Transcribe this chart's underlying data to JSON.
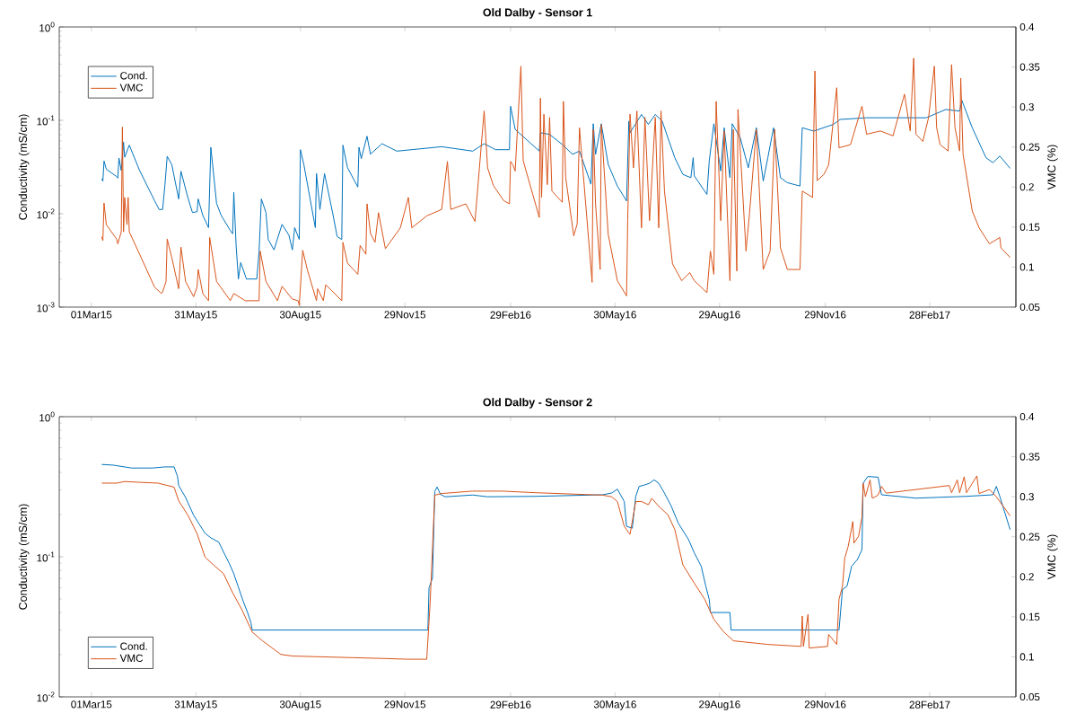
{
  "chart_data": [
    {
      "type": "line",
      "title": "Old Dalby - Sensor 1",
      "ylabel": "Conductivity (mS/cm)",
      "y2label": "VMC (%)",
      "log": "y",
      "legend": "top left",
      "xlim": [
        "2015-02-01",
        "2017-05-14"
      ],
      "xticks": [
        {
          "value": "2015-03-01",
          "label": "01Mar15"
        },
        {
          "value": "2015-05-31",
          "label": "31May15"
        },
        {
          "value": "2015-08-30",
          "label": "30Aug15"
        },
        {
          "value": "2015-11-29",
          "label": "29Nov15"
        },
        {
          "value": "2016-02-29",
          "label": "29Feb16"
        },
        {
          "value": "2016-05-30",
          "label": "30May16"
        },
        {
          "value": "2016-08-29",
          "label": "29Aug16"
        },
        {
          "value": "2016-11-29",
          "label": "29Nov16"
        },
        {
          "value": "2017-02-28",
          "label": "28Feb17"
        }
      ],
      "ylim": [
        0.001,
        1
      ],
      "yticks": [
        {
          "value": 0.001,
          "label": "10$^{-3}$"
        },
        {
          "value": 0.01,
          "label": "10$^{-2}$"
        },
        {
          "value": 0.1,
          "label": "10$^{-1}$"
        },
        {
          "value": 1,
          "label": "10$^{0}$"
        }
      ],
      "y2lim": [
        0.05,
        0.4
      ],
      "y2ticks": [
        0.05,
        0.1,
        0.15,
        0.2,
        0.25,
        0.3,
        0.35,
        0.4
      ],
      "series": [
        {
          "name": "Cond.",
          "color": "#0072bd",
          "x": [
            "2015-03-10",
            "2015-03-11",
            "2015-03-12",
            "2015-03-14",
            "2015-03-23",
            "2015-03-24",
            "2015-03-25",
            "2015-03-27",
            "2015-03-29",
            "2015-03-30",
            "2015-04-03",
            "2015-04-12",
            "2015-04-25",
            "2015-04-29",
            "2015-05-02",
            "2015-05-04",
            "2015-05-06",
            "2015-05-10",
            "2015-05-16",
            "2015-05-18",
            "2015-05-24",
            "2015-05-28",
            "2015-06-01",
            "2015-06-02",
            "2015-06-06",
            "2015-06-11",
            "2015-06-13",
            "2015-06-18",
            "2015-06-22",
            "2015-06-30",
            "2015-07-02",
            "2015-07-03",
            "2015-07-05",
            "2015-07-07",
            "2015-07-09",
            "2015-07-14",
            "2015-07-23",
            "2015-07-25",
            "2015-07-27",
            "2015-07-31",
            "2015-08-02",
            "2015-08-07",
            "2015-08-14",
            "2015-08-20",
            "2015-08-23",
            "2015-08-25",
            "2015-08-29",
            "2015-08-30",
            "2015-09-02",
            "2015-09-12",
            "2015-09-13",
            "2015-09-16",
            "2015-09-20",
            "2015-09-27",
            "2015-10-01",
            "2015-10-05",
            "2015-10-06",
            "2015-10-10",
            "2015-10-19",
            "2015-10-20",
            "2015-10-22",
            "2015-10-27",
            "2015-10-30",
            "2015-11-09",
            "2015-11-22",
            "2015-12-05",
            "2015-12-31",
            "2016-01-27",
            "2016-02-06",
            "2016-02-16",
            "2016-02-28",
            "2016-02-29",
            "2016-03-04",
            "2016-03-25",
            "2016-03-26",
            "2016-04-03",
            "2016-04-14",
            "2016-04-23",
            "2016-04-29",
            "2016-05-09",
            "2016-05-11",
            "2016-05-13",
            "2016-05-18",
            "2016-05-24",
            "2016-06-01",
            "2016-06-09",
            "2016-06-11",
            "2016-06-12",
            "2016-06-22",
            "2016-06-28",
            "2016-07-04",
            "2016-07-10",
            "2016-07-21",
            "2016-07-28",
            "2016-08-04",
            "2016-08-06",
            "2016-08-07",
            "2016-08-18",
            "2016-08-20",
            "2016-08-24",
            "2016-08-30",
            "2016-09-02",
            "2016-09-07",
            "2016-09-09",
            "2016-09-16",
            "2016-09-23",
            "2016-09-30",
            "2016-10-06",
            "2016-10-10",
            "2016-10-15",
            "2016-10-21",
            "2016-10-27",
            "2016-11-07",
            "2016-11-09",
            "2016-11-19",
            "2016-12-06",
            "2016-12-12",
            "2017-01-04",
            "2017-02-02",
            "2017-02-25",
            "2017-03-14",
            "2017-03-26",
            "2017-03-28",
            "2017-04-06",
            "2017-04-18",
            "2017-04-24",
            "2017-04-30",
            "2017-05-09"
          ],
          "values": [
            0.0237,
            0.0223,
            0.0366,
            0.03,
            0.025,
            0.0241,
            0.0395,
            0.029,
            0.0583,
            0.0403,
            0.0542,
            0.029,
            0.0138,
            0.0111,
            0.0111,
            0.02,
            0.0412,
            0.0336,
            0.0144,
            0.0285,
            0.0149,
            0.0103,
            0.0105,
            0.0144,
            0.0096,
            0.0071,
            0.0515,
            0.0129,
            0.0096,
            0.0066,
            0.0061,
            0.017,
            0.0046,
            0.002,
            0.003,
            0.002,
            0.002,
            0.0039,
            0.0144,
            0.0103,
            0.0053,
            0.0041,
            0.0077,
            0.0059,
            0.0041,
            0.0071,
            0.0053,
            0.0485,
            0.0336,
            0.0071,
            0.0269,
            0.0111,
            0.0269,
            0.0103,
            0.0057,
            0.0053,
            0.0542,
            0.0312,
            0.0193,
            0.0515,
            0.0389,
            0.0676,
            0.0434,
            0.0562,
            0.0468,
            0.0485,
            0.0522,
            0.0468,
            0.0562,
            0.0485,
            0.0485,
            0.1415,
            0.08,
            0.0469,
            0.0736,
            0.0707,
            0.0552,
            0.0432,
            0.0469,
            0.0207,
            0.0919,
            0.0432,
            0.0919,
            0.0338,
            0.0198,
            0.0137,
            0.0982,
            0.0736,
            0.1156,
            0.0904,
            0.1156,
            0.0982,
            0.0398,
            0.0264,
            0.0243,
            0.0398,
            0.0254,
            0.0161,
            0.0367,
            0.0919,
            0.0287,
            0.0833,
            0.0243,
            0.0919,
            0.0651,
            0.0311,
            0.0833,
            0.0224,
            0.0398,
            0.0833,
            0.0243,
            0.0215,
            0.0198,
            0.0833,
            0.0767,
            0.0904,
            0.1022,
            0.1065,
            0.1065,
            0.1065,
            0.1307,
            0.1256,
            0.1632,
            0.0833,
            0.0398,
            0.0352,
            0.0415,
            0.0306
          ]
        },
        {
          "name": "VMC",
          "color": "#d95319",
          "axis": "y2",
          "x": [
            "2015-03-10",
            "2015-03-11",
            "2015-03-12",
            "2015-03-14",
            "2015-03-23",
            "2015-03-24",
            "2015-03-27",
            "2015-03-28",
            "2015-03-29",
            "2015-03-30",
            "2015-04-01",
            "2015-04-02",
            "2015-04-03",
            "2015-04-12",
            "2015-04-25",
            "2015-05-01",
            "2015-05-02",
            "2015-05-05",
            "2015-05-06",
            "2015-05-10",
            "2015-05-16",
            "2015-05-18",
            "2015-05-22",
            "2015-05-29",
            "2015-06-01",
            "2015-06-02",
            "2015-06-06",
            "2015-06-11",
            "2015-06-12",
            "2015-06-18",
            "2015-06-30",
            "2015-07-03",
            "2015-07-13",
            "2015-07-25",
            "2015-07-26",
            "2015-07-31",
            "2015-08-10",
            "2015-08-14",
            "2015-08-23",
            "2015-08-28",
            "2015-08-29",
            "2015-09-01",
            "2015-09-05",
            "2015-09-13",
            "2015-09-14",
            "2015-09-19",
            "2015-09-21",
            "2015-09-26",
            "2015-10-05",
            "2015-10-06",
            "2015-10-10",
            "2015-10-19",
            "2015-10-21",
            "2015-10-26",
            "2015-10-27",
            "2015-10-30",
            "2015-11-03",
            "2015-11-06",
            "2015-11-12",
            "2015-11-25",
            "2015-12-02",
            "2015-12-05",
            "2015-12-18",
            "2015-12-31",
            "2016-01-05",
            "2016-01-08",
            "2016-01-21",
            "2016-01-29",
            "2016-02-06",
            "2016-02-09",
            "2016-02-14",
            "2016-02-23",
            "2016-02-28",
            "2016-02-29",
            "2016-03-02",
            "2016-03-04",
            "2016-03-09",
            "2016-03-11",
            "2016-03-25",
            "2016-03-26",
            "2016-03-27",
            "2016-03-29",
            "2016-04-01",
            "2016-04-03",
            "2016-04-05",
            "2016-04-14",
            "2016-04-15",
            "2016-04-17",
            "2016-04-24",
            "2016-04-27",
            "2016-04-29",
            "2016-05-10",
            "2016-05-11",
            "2016-05-13",
            "2016-05-17",
            "2016-05-18",
            "2016-05-24",
            "2016-06-01",
            "2016-06-09",
            "2016-06-10",
            "2016-06-12",
            "2016-06-15",
            "2016-06-18",
            "2016-06-22",
            "2016-06-25",
            "2016-06-29",
            "2016-07-04",
            "2016-07-07",
            "2016-07-09",
            "2016-07-12",
            "2016-07-19",
            "2016-07-27",
            "2016-08-03",
            "2016-08-07",
            "2016-08-18",
            "2016-08-21",
            "2016-08-24",
            "2016-08-26",
            "2016-08-30",
            "2016-09-02",
            "2016-09-07",
            "2016-09-10",
            "2016-09-13",
            "2016-09-14",
            "2016-09-21",
            "2016-09-24",
            "2016-09-30",
            "2016-10-06",
            "2016-10-12",
            "2016-10-16",
            "2016-10-21",
            "2016-10-27",
            "2016-11-07",
            "2016-11-09",
            "2016-11-18",
            "2016-11-20",
            "2016-11-22",
            "2016-11-28",
            "2016-12-02",
            "2016-12-09",
            "2016-12-11",
            "2016-12-21",
            "2016-12-31",
            "2017-01-04",
            "2017-01-16",
            "2017-01-27",
            "2017-02-06",
            "2017-02-11",
            "2017-02-14",
            "2017-02-16",
            "2017-02-22",
            "2017-02-27",
            "2017-03-04",
            "2017-03-06",
            "2017-03-09",
            "2017-03-16",
            "2017-03-19",
            "2017-03-22",
            "2017-03-26",
            "2017-03-27",
            "2017-03-29",
            "2017-04-06",
            "2017-04-12",
            "2017-04-21",
            "2017-04-30",
            "2017-05-01",
            "2017-05-09"
          ],
          "values": [
            0.138,
            0.133,
            0.18,
            0.153,
            0.135,
            0.129,
            0.144,
            0.275,
            0.144,
            0.187,
            0.153,
            0.187,
            0.144,
            0.116,
            0.075,
            0.067,
            0.069,
            0.082,
            0.135,
            0.112,
            0.073,
            0.125,
            0.082,
            0.063,
            0.075,
            0.097,
            0.067,
            0.058,
            0.137,
            0.082,
            0.058,
            0.067,
            0.058,
            0.058,
            0.12,
            0.082,
            0.058,
            0.076,
            0.06,
            0.058,
            0.052,
            0.121,
            0.097,
            0.058,
            0.073,
            0.058,
            0.078,
            0.071,
            0.058,
            0.131,
            0.105,
            0.091,
            0.127,
            0.116,
            0.179,
            0.142,
            0.131,
            0.168,
            0.123,
            0.149,
            0.187,
            0.149,
            0.164,
            0.172,
            0.232,
            0.172,
            0.179,
            0.157,
            0.295,
            0.224,
            0.202,
            0.183,
            0.179,
            0.232,
            0.228,
            0.22,
            0.351,
            0.233,
            0.162,
            0.311,
            0.187,
            0.291,
            0.203,
            0.287,
            0.195,
            0.181,
            0.307,
            0.212,
            0.139,
            0.154,
            0.274,
            0.081,
            0.272,
            0.179,
            0.097,
            0.278,
            0.141,
            0.083,
            0.064,
            0.158,
            0.291,
            0.224,
            0.295,
            0.149,
            0.287,
            0.158,
            0.287,
            0.149,
            0.295,
            0.195,
            0.104,
            0.083,
            0.093,
            0.083,
            0.068,
            0.12,
            0.091,
            0.307,
            0.158,
            0.27,
            0.083,
            0.272,
            0.095,
            0.297,
            0.12,
            0.166,
            0.272,
            0.097,
            0.12,
            0.272,
            0.124,
            0.097,
            0.097,
            0.195,
            0.187,
            0.345,
            0.208,
            0.216,
            0.228,
            0.324,
            0.249,
            0.253,
            0.301,
            0.266,
            0.27,
            0.264,
            0.316,
            0.27,
            0.361,
            0.266,
            0.257,
            0.287,
            0.351,
            0.274,
            0.253,
            0.245,
            0.353,
            0.274,
            0.245,
            0.336,
            0.241,
            0.17,
            0.149,
            0.129,
            0.137,
            0.124,
            0.112
          ]
        }
      ]
    },
    {
      "type": "line",
      "title": "Old Dalby - Sensor 2",
      "ylabel": "Conductivity (mS/cm)",
      "y2label": "VMC (%)",
      "log": "y",
      "legend": "bottom left",
      "xlim": [
        "2015-02-01",
        "2017-05-14"
      ],
      "xticks": [
        {
          "value": "2015-03-01",
          "label": "01Mar15"
        },
        {
          "value": "2015-05-31",
          "label": "31May15"
        },
        {
          "value": "2015-08-30",
          "label": "30Aug15"
        },
        {
          "value": "2015-11-29",
          "label": "29Nov15"
        },
        {
          "value": "2016-02-29",
          "label": "29Feb16"
        },
        {
          "value": "2016-05-30",
          "label": "30May16"
        },
        {
          "value": "2016-08-29",
          "label": "29Aug16"
        },
        {
          "value": "2016-11-29",
          "label": "29Nov16"
        },
        {
          "value": "2017-02-28",
          "label": "28Feb17"
        }
      ],
      "ylim": [
        0.01,
        1
      ],
      "yticks": [
        {
          "value": 0.01,
          "label": "10$^{-2}$"
        },
        {
          "value": 0.1,
          "label": "10$^{-1}$"
        },
        {
          "value": 1,
          "label": "10$^{0}$"
        }
      ],
      "y2lim": [
        0.05,
        0.4
      ],
      "y2ticks": [
        0.05,
        0.1,
        0.15,
        0.2,
        0.25,
        0.3,
        0.35,
        0.4
      ],
      "series": [
        {
          "name": "Cond.",
          "color": "#0072bd",
          "x": [
            "2015-03-10",
            "2015-03-20",
            "2015-04-05",
            "2015-04-23",
            "2015-05-04",
            "2015-05-10",
            "2015-05-12",
            "2015-05-15",
            "2015-05-16",
            "2015-05-22",
            "2015-05-29",
            "2015-06-03",
            "2015-06-08",
            "2015-06-13",
            "2015-06-20",
            "2015-06-25",
            "2015-06-29",
            "2015-07-03",
            "2015-07-07",
            "2015-07-11",
            "2015-07-15",
            "2015-07-18",
            "2015-07-19",
            "2015-08-23",
            "2015-10-14",
            "2015-12-19",
            "2015-12-20",
            "2015-12-23",
            "2015-12-25",
            "2015-12-27",
            "2015-12-30",
            "2016-01-03",
            "2016-01-27",
            "2016-02-09",
            "2016-03-22",
            "2016-05-19",
            "2016-05-27",
            "2016-06-01",
            "2016-06-07",
            "2016-06-09",
            "2016-06-14",
            "2016-06-17",
            "2016-06-20",
            "2016-06-25",
            "2016-06-29",
            "2016-07-03",
            "2016-07-07",
            "2016-07-12",
            "2016-07-18",
            "2016-07-24",
            "2016-08-02",
            "2016-08-07",
            "2016-08-13",
            "2016-08-17",
            "2016-08-20",
            "2016-08-21",
            "2016-09-07",
            "2016-09-08",
            "2016-10-10",
            "2016-12-11",
            "2016-12-14",
            "2016-12-18",
            "2016-12-22",
            "2016-12-27",
            "2016-12-31",
            "2017-01-01",
            "2017-01-05",
            "2017-01-14",
            "2017-01-15",
            "2017-01-17",
            "2017-02-16",
            "2017-04-01",
            "2017-04-24",
            "2017-04-27",
            "2017-04-30",
            "2017-05-09"
          ],
          "values": [
            0.456,
            0.451,
            0.43,
            0.43,
            0.438,
            0.438,
            0.438,
            0.374,
            0.323,
            0.265,
            0.198,
            0.1705,
            0.147,
            0.1366,
            0.127,
            0.1043,
            0.09,
            0.0757,
            0.0607,
            0.0486,
            0.04,
            0.0337,
            0.03,
            0.03,
            0.03,
            0.03,
            0.0601,
            0.0704,
            0.292,
            0.315,
            0.279,
            0.268,
            0.276,
            0.268,
            0.27,
            0.277,
            0.285,
            0.304,
            0.248,
            0.165,
            0.16,
            0.27,
            0.318,
            0.326,
            0.335,
            0.354,
            0.335,
            0.285,
            0.229,
            0.174,
            0.1325,
            0.1065,
            0.0856,
            0.0617,
            0.0496,
            0.04,
            0.04,
            0.03,
            0.03,
            0.03,
            0.0584,
            0.0617,
            0.0856,
            0.0955,
            0.1125,
            0.335,
            0.374,
            0.37,
            0.335,
            0.277,
            0.262,
            0.27,
            0.277,
            0.318,
            0.27,
            0.156
          ]
        },
        {
          "name": "VMC",
          "color": "#d95319",
          "axis": "y2",
          "x": [
            "2015-03-10",
            "2015-03-23",
            "2015-03-30",
            "2015-04-12",
            "2015-04-28",
            "2015-05-12",
            "2015-05-16",
            "2015-05-24",
            "2015-06-01",
            "2015-06-08",
            "2015-06-16",
            "2015-06-24",
            "2015-07-02",
            "2015-07-10",
            "2015-07-19",
            "2015-07-28",
            "2015-08-13",
            "2015-08-23",
            "2015-10-14",
            "2015-11-09",
            "2015-12-01",
            "2015-12-18",
            "2015-12-21",
            "2015-12-25",
            "2015-12-31",
            "2016-01-27",
            "2016-02-22",
            "2016-03-22",
            "2016-05-19",
            "2016-05-27",
            "2016-06-01",
            "2016-06-07",
            "2016-06-12",
            "2016-06-17",
            "2016-06-22",
            "2016-06-28",
            "2016-07-01",
            "2016-07-07",
            "2016-07-15",
            "2016-07-21",
            "2016-07-28",
            "2016-08-07",
            "2016-08-16",
            "2016-08-24",
            "2016-09-01",
            "2016-09-10",
            "2016-10-10",
            "2016-11-08",
            "2016-11-09",
            "2016-11-10",
            "2016-11-14",
            "2016-11-15",
            "2016-12-01",
            "2016-12-02",
            "2016-12-09",
            "2016-12-11",
            "2016-12-14",
            "2016-12-16",
            "2016-12-19",
            "2016-12-23",
            "2016-12-24",
            "2016-12-28",
            "2016-12-31",
            "2017-01-01",
            "2017-01-03",
            "2017-01-07",
            "2017-01-09",
            "2017-01-14",
            "2017-01-17",
            "2017-01-21",
            "2017-02-16",
            "2017-03-17",
            "2017-03-19",
            "2017-03-24",
            "2017-03-26",
            "2017-03-30",
            "2017-04-01",
            "2017-04-10",
            "2017-04-12",
            "2017-04-21",
            "2017-04-27",
            "2017-05-09"
          ],
          "values": [
            0.317,
            0.317,
            0.319,
            0.318,
            0.317,
            0.312,
            0.295,
            0.277,
            0.254,
            0.2245,
            0.214,
            0.204,
            0.18,
            0.159,
            0.131,
            0.12,
            0.103,
            0.101,
            0.099,
            0.098,
            0.097,
            0.097,
            0.1685,
            0.302,
            0.304,
            0.307,
            0.307,
            0.305,
            0.302,
            0.3,
            0.294,
            0.263,
            0.253,
            0.294,
            0.294,
            0.29,
            0.298,
            0.288,
            0.2775,
            0.259,
            0.215,
            0.192,
            0.172,
            0.147,
            0.132,
            0.12,
            0.1155,
            0.113,
            0.151,
            0.113,
            0.153,
            0.111,
            0.113,
            0.128,
            0.1155,
            0.172,
            0.188,
            0.2235,
            0.238,
            0.269,
            0.242,
            0.2505,
            0.275,
            0.317,
            0.3,
            0.321,
            0.298,
            0.302,
            0.313,
            0.3045,
            0.309,
            0.314,
            0.305,
            0.321,
            0.305,
            0.325,
            0.305,
            0.326,
            0.304,
            0.309,
            0.3,
            0.276
          ]
        }
      ]
    }
  ]
}
